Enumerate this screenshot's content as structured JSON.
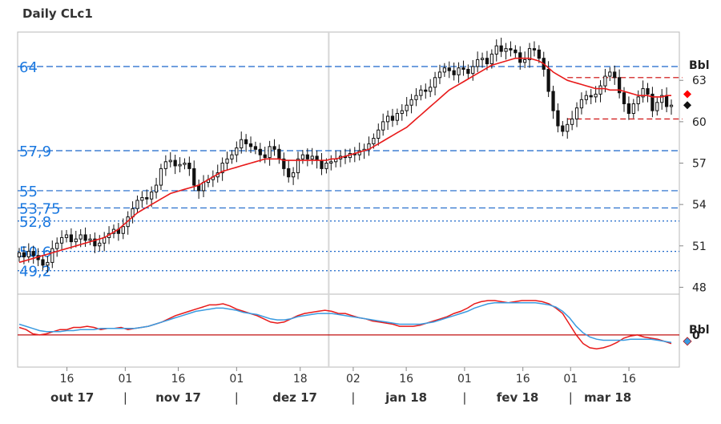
{
  "chart_data": {
    "type": "candlestick",
    "title": "Daily CLc1",
    "price_panel": {
      "unit_label": "Bbl",
      "ylim": [
        47.5,
        66.5
      ],
      "y_ticks": [
        48,
        51,
        54,
        57,
        60,
        63
      ],
      "support_resistance_levels": [
        {
          "label": "64",
          "value": 64,
          "style": "dashed"
        },
        {
          "label": "57,9",
          "value": 57.9,
          "style": "dashed"
        },
        {
          "label": "55",
          "value": 55,
          "style": "dashed"
        },
        {
          "label": "53,75",
          "value": 53.75,
          "style": "dashed"
        },
        {
          "label": "52,8",
          "value": 52.8,
          "style": "dotted"
        },
        {
          "label": "50,6",
          "value": 50.6,
          "style": "dotted"
        },
        {
          "label": "49,2",
          "value": 49.2,
          "style": "dotted"
        }
      ],
      "channel_lines": [
        {
          "value": 63.2,
          "start_day": 116,
          "end_day": 139,
          "color": "#cc0000"
        },
        {
          "value": 60.2,
          "start_day": 116,
          "end_day": 139,
          "color": "#cc0000"
        }
      ],
      "markers": [
        {
          "value": 62.0,
          "color": "#ff0000"
        },
        {
          "value": 61.2,
          "color": "#111111"
        }
      ],
      "candles_close": [
        50.5,
        50.2,
        50.6,
        50.3,
        50.0,
        49.6,
        49.8,
        50.8,
        51.2,
        51.6,
        51.8,
        51.3,
        51.5,
        51.8,
        51.4,
        51.5,
        51.0,
        51.2,
        51.6,
        51.9,
        52.2,
        51.9,
        52.4,
        53.1,
        53.7,
        54.3,
        54.5,
        54.4,
        54.9,
        55.4,
        56.6,
        57.1,
        57.2,
        56.8,
        56.9,
        57.0,
        56.6,
        55.4,
        55.0,
        55.6,
        55.8,
        56.0,
        56.3,
        57.0,
        57.3,
        57.6,
        58.1,
        58.7,
        58.4,
        58.2,
        58.0,
        57.6,
        57.4,
        58.2,
        58.0,
        57.3,
        56.6,
        56.0,
        56.3,
        57.3,
        57.6,
        57.3,
        57.5,
        57.2,
        56.6,
        57.0,
        57.1,
        57.3,
        57.5,
        57.4,
        57.7,
        57.6,
        57.9,
        58.0,
        58.4,
        58.8,
        59.4,
        60.0,
        60.4,
        60.1,
        60.6,
        60.8,
        61.2,
        61.6,
        61.9,
        62.3,
        62.2,
        62.5,
        63.2,
        63.6,
        63.9,
        63.7,
        63.4,
        63.9,
        63.8,
        63.5,
        64.0,
        64.5,
        64.6,
        64.2,
        64.9,
        65.5,
        65.1,
        65.3,
        65.2,
        65.0,
        64.3,
        64.5,
        65.3,
        65.2,
        64.6,
        63.8,
        62.2,
        60.8,
        59.7,
        59.3,
        59.8,
        60.2,
        61.0,
        61.6,
        61.9,
        61.8,
        62.0,
        62.6,
        63.3,
        63.6,
        63.2,
        62.1,
        61.3,
        60.6,
        61.3,
        61.8,
        62.4,
        62.0,
        60.8,
        61.4,
        61.9,
        61.1,
        61.2
      ],
      "ma_line": [
        49.8,
        49.9,
        50.0,
        50.1,
        50.2,
        50.3,
        50.4,
        50.5,
        50.6,
        50.7,
        50.8,
        50.9,
        51.0,
        51.1,
        51.2,
        51.3,
        51.4,
        51.5,
        51.6,
        51.8,
        52.0,
        52.2,
        52.5,
        52.8,
        53.1,
        53.4,
        53.6,
        53.8,
        54.0,
        54.2,
        54.4,
        54.6,
        54.8,
        54.9,
        55.0,
        55.1,
        55.2,
        55.3,
        55.4,
        55.6,
        55.8,
        56.0,
        56.2,
        56.4,
        56.5,
        56.6,
        56.7,
        56.8,
        56.9,
        57.0,
        57.1,
        57.2,
        57.3,
        57.3,
        57.3,
        57.3,
        57.2,
        57.2,
        57.2,
        57.2,
        57.2,
        57.2,
        57.2,
        57.2,
        57.2,
        57.2,
        57.3,
        57.3,
        57.4,
        57.5,
        57.6,
        57.7,
        57.8,
        57.9,
        58.0,
        58.2,
        58.4,
        58.6,
        58.8,
        59.0,
        59.2,
        59.4,
        59.6,
        59.9,
        60.2,
        60.5,
        60.8,
        61.1,
        61.4,
        61.7,
        62.0,
        62.3,
        62.5,
        62.7,
        62.9,
        63.1,
        63.3,
        63.5,
        63.7,
        63.9,
        64.1,
        64.2,
        64.3,
        64.4,
        64.5,
        64.6,
        64.6,
        64.6,
        64.6,
        64.5,
        64.4,
        64.2,
        63.9,
        63.6,
        63.4,
        63.2,
        63.0,
        62.9,
        62.8,
        62.7,
        62.6,
        62.5,
        62.4,
        62.4,
        62.4,
        62.3,
        62.3,
        62.3,
        62.2,
        62.1,
        62.0,
        61.9,
        61.9,
        61.9,
        61.8,
        61.8,
        61.8,
        61.9,
        61.9
      ]
    },
    "indicator_panel": {
      "unit_label": "Bbl",
      "zero_label": "0",
      "ylim": [
        -3.0,
        3.8
      ],
      "zero_value": 0,
      "series": [
        {
          "color": "#e81a1a",
          "values": [
            0.7,
            0.5,
            0.1,
            0.0,
            0.1,
            0.3,
            0.5,
            0.5,
            0.7,
            0.7,
            0.8,
            0.7,
            0.5,
            0.6,
            0.6,
            0.7,
            0.5,
            0.6,
            0.7,
            0.8,
            1.0,
            1.2,
            1.5,
            1.8,
            2.0,
            2.2,
            2.4,
            2.6,
            2.8,
            2.8,
            2.9,
            2.7,
            2.4,
            2.2,
            2.0,
            1.8,
            1.5,
            1.2,
            1.1,
            1.2,
            1.5,
            1.8,
            2.0,
            2.1,
            2.2,
            2.3,
            2.2,
            2.0,
            2.0,
            1.8,
            1.6,
            1.5,
            1.3,
            1.2,
            1.1,
            1.0,
            0.8,
            0.8,
            0.8,
            0.9,
            1.1,
            1.3,
            1.5,
            1.7,
            2.0,
            2.2,
            2.5,
            2.9,
            3.1,
            3.2,
            3.2,
            3.1,
            3.0,
            3.1,
            3.2,
            3.2,
            3.2,
            3.1,
            2.9,
            2.5,
            2.0,
            1.0,
            0.0,
            -0.8,
            -1.2,
            -1.3,
            -1.2,
            -1.0,
            -0.7,
            -0.3,
            -0.1,
            0.0,
            -0.2,
            -0.3,
            -0.4,
            -0.6,
            -0.8
          ]
        },
        {
          "color": "#3a9be0",
          "values": [
            1.0,
            0.8,
            0.6,
            0.4,
            0.3,
            0.3,
            0.3,
            0.4,
            0.4,
            0.5,
            0.5,
            0.5,
            0.6,
            0.6,
            0.6,
            0.6,
            0.6,
            0.6,
            0.7,
            0.8,
            1.0,
            1.2,
            1.4,
            1.6,
            1.8,
            2.0,
            2.2,
            2.3,
            2.4,
            2.5,
            2.5,
            2.4,
            2.3,
            2.1,
            2.0,
            1.9,
            1.7,
            1.5,
            1.4,
            1.4,
            1.5,
            1.7,
            1.8,
            1.9,
            2.0,
            2.0,
            2.0,
            1.9,
            1.8,
            1.7,
            1.6,
            1.5,
            1.4,
            1.3,
            1.2,
            1.1,
            1.0,
            1.0,
            1.0,
            1.0,
            1.1,
            1.2,
            1.4,
            1.6,
            1.8,
            2.0,
            2.2,
            2.5,
            2.7,
            2.9,
            3.0,
            3.0,
            3.0,
            3.0,
            3.0,
            3.0,
            3.0,
            2.9,
            2.8,
            2.6,
            2.2,
            1.6,
            0.8,
            0.2,
            -0.2,
            -0.4,
            -0.5,
            -0.5,
            -0.5,
            -0.5,
            -0.4,
            -0.4,
            -0.4,
            -0.4,
            -0.5,
            -0.6,
            -0.7
          ]
        }
      ]
    },
    "x_axis": {
      "day_labels": [
        {
          "text": "16",
          "day": 9
        },
        {
          "text": "01",
          "day": 20
        },
        {
          "text": "16",
          "day": 30
        },
        {
          "text": "01",
          "day": 41
        },
        {
          "text": "18",
          "day": 53
        },
        {
          "text": "02",
          "day": 63
        },
        {
          "text": "16",
          "day": 73
        },
        {
          "text": "01",
          "day": 84
        },
        {
          "text": "16",
          "day": 95
        },
        {
          "text": "01",
          "day": 104
        },
        {
          "text": "16",
          "day": 115
        }
      ],
      "month_labels": [
        {
          "text": "out 17",
          "day": 10
        },
        {
          "text": "nov 17",
          "day": 30
        },
        {
          "text": "dez 17",
          "day": 52
        },
        {
          "text": "jan 18",
          "day": 73
        },
        {
          "text": "fev 18",
          "day": 94
        },
        {
          "text": "mar 18",
          "day": 111
        }
      ]
    }
  }
}
